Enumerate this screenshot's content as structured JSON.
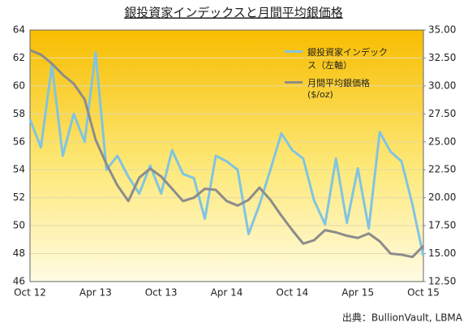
{
  "chart_data": {
    "type": "line",
    "title": "銀投資家インデックスと月間平均銀価格",
    "source": "出典：BullionVault, LBMA",
    "categories": [
      "Oct 12",
      null,
      null,
      null,
      null,
      null,
      "Apr 13",
      null,
      null,
      null,
      null,
      null,
      "Oct 13",
      null,
      null,
      null,
      null,
      null,
      "Apr 14",
      null,
      null,
      null,
      null,
      null,
      "Oct 14",
      null,
      null,
      null,
      null,
      null,
      "Apr 15",
      null,
      null,
      null,
      null,
      null,
      "Oct 15"
    ],
    "series": [
      {
        "name": "銀投資家インデックス（左軸）",
        "color": "#80c4e2",
        "axis": "y",
        "values": [
          57.6,
          55.6,
          61.5,
          55.0,
          58.0,
          56.0,
          62.4,
          54.0,
          55.0,
          53.5,
          52.3,
          54.3,
          52.3,
          55.4,
          53.7,
          53.4,
          50.5,
          55.0,
          54.6,
          54.0,
          49.4,
          51.5,
          54.0,
          56.6,
          55.4,
          54.8,
          51.8,
          50.1,
          54.8,
          50.2,
          54.1,
          49.8,
          56.7,
          55.3,
          54.6,
          51.5,
          47.8
        ]
      },
      {
        "name": "月間平均銀価格 ($/oz)",
        "color": "#8c8c8c",
        "axis": "y2",
        "values": [
          33.2,
          32.8,
          32.0,
          31.0,
          30.2,
          28.8,
          25.2,
          23.0,
          21.1,
          19.7,
          21.8,
          22.6,
          21.9,
          20.8,
          19.7,
          20.0,
          20.8,
          20.7,
          19.7,
          19.3,
          19.8,
          20.9,
          19.8,
          18.4,
          17.1,
          15.9,
          16.2,
          17.1,
          16.9,
          16.6,
          16.4,
          16.8,
          16.1,
          15.0,
          14.9,
          14.7,
          15.7
        ]
      }
    ],
    "ylim": [
      46,
      64
    ],
    "yticks": [
      46,
      48,
      50,
      52,
      54,
      56,
      58,
      60,
      62,
      64
    ],
    "y2lim": [
      12.5,
      35
    ],
    "y2ticks": [
      {
        "value": 12.5,
        "label": "12.50"
      },
      {
        "value": 15,
        "label": "15.00"
      },
      {
        "value": 17.5,
        "label": "17.50"
      },
      {
        "value": 20,
        "label": "20.00"
      },
      {
        "value": 22.5,
        "label": "22.50"
      },
      {
        "value": 25,
        "label": "25.00"
      },
      {
        "value": 27.5,
        "label": "27.50"
      },
      {
        "value": 30,
        "label": "30.00"
      },
      {
        "value": 32.5,
        "label": "32.50"
      },
      {
        "value": 35,
        "label": "35.00"
      }
    ],
    "grid": true
  }
}
